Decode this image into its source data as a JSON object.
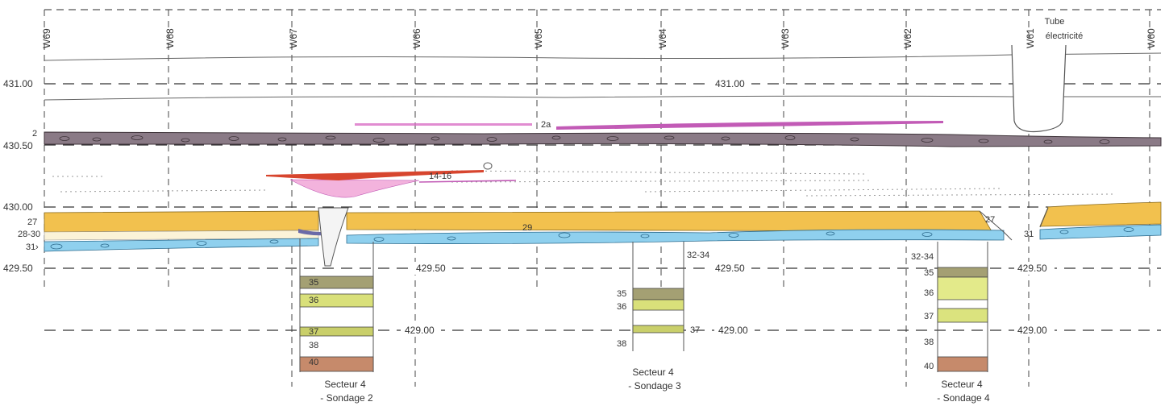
{
  "columns": [
    "W69",
    "W68",
    "W67",
    "W66",
    "W65",
    "W64",
    "W63",
    "W62",
    "W61",
    "W60"
  ],
  "elevations_left": [
    "431.00",
    "430.50",
    "430.00",
    "429.50"
  ],
  "elevations_mid": [
    "431.00",
    "429.50",
    "429.50",
    "429.50",
    "429.00",
    "429.00",
    "429.00"
  ],
  "notes": {
    "tube_line1": "Tube",
    "tube_line2": "électricité"
  },
  "layer_labels": [
    "2",
    "27",
    "28-30",
    "31",
    "2a",
    "14-16",
    "29",
    "27",
    "31",
    "32-34",
    "32-34"
  ],
  "sondages": [
    {
      "line1": "Secteur 4",
      "line2": "- Sondage 2",
      "layers": [
        "35",
        "36",
        "37",
        "38",
        "40"
      ]
    },
    {
      "line1": "Secteur 4",
      "line2": "- Sondage 3",
      "layers": [
        "35",
        "36",
        "37",
        "38"
      ]
    },
    {
      "line1": "Secteur 4",
      "line2": "- Sondage 4",
      "layers": [
        "35",
        "36",
        "37",
        "38",
        "40"
      ]
    }
  ],
  "colors": {
    "layer2": "#8a7a86",
    "yellow": "#f2c14e",
    "blue": "#8fd0ee",
    "magenta": "#d96fc5",
    "red": "#d7452e",
    "olive": "#a4a073",
    "lime": "#d9e07a",
    "brown": "#c68a6b"
  }
}
